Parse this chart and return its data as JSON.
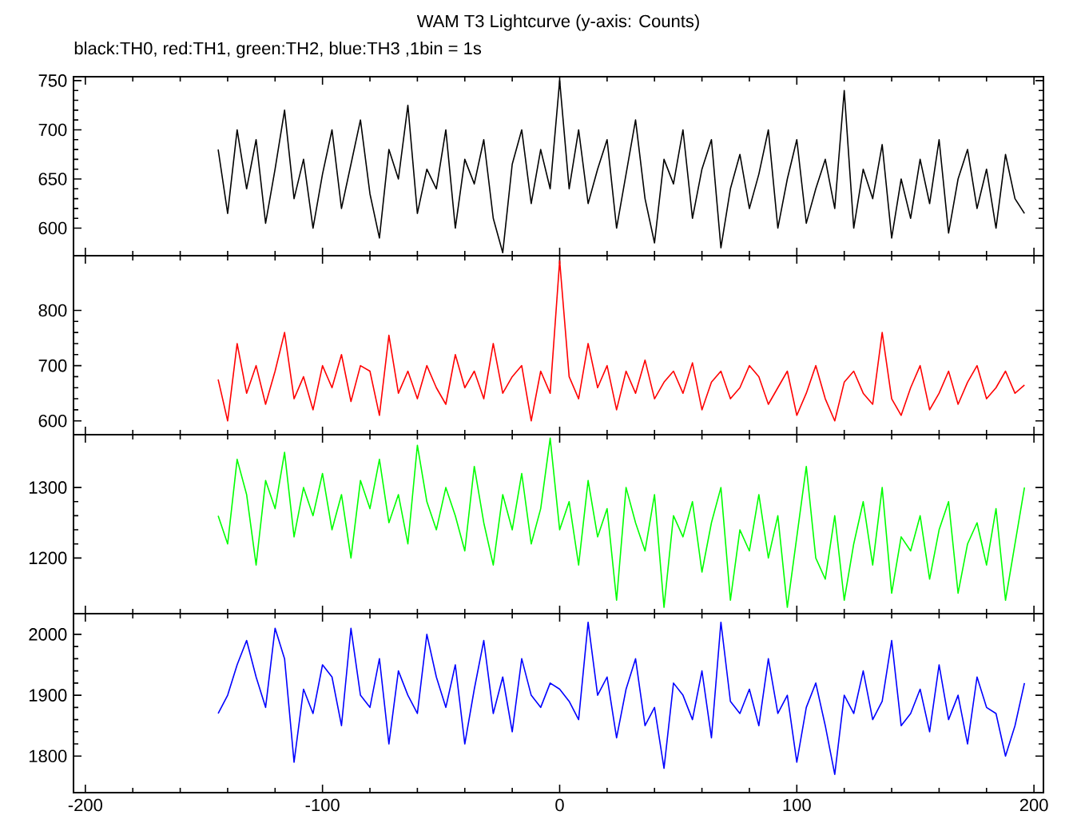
{
  "chart_data": [
    {
      "type": "line",
      "title": "WAM T3 Lightcurve (y-axis: Counts)",
      "subtitle": "black:TH0, red:TH1, green:TH2, blue:TH3 ,1bin = 1s",
      "tick_labels": "y",
      "xlim": [
        -205,
        204
      ],
      "xticks": [
        -200,
        -100,
        0,
        100,
        200
      ],
      "ylim": [
        572,
        754
      ],
      "yticks": [
        600,
        650,
        700,
        750
      ],
      "x": [
        -144,
        -140,
        -136,
        -132,
        -128,
        -124,
        -120,
        -116,
        -112,
        -108,
        -104,
        -100,
        -96,
        -92,
        -88,
        -84,
        -80,
        -76,
        -72,
        -68,
        -64,
        -60,
        -56,
        -52,
        -48,
        -44,
        -40,
        -36,
        -32,
        -28,
        -24,
        -20,
        -16,
        -12,
        -8,
        -4,
        0,
        4,
        8,
        12,
        16,
        20,
        24,
        28,
        32,
        36,
        40,
        44,
        48,
        52,
        56,
        60,
        64,
        68,
        72,
        76,
        80,
        84,
        88,
        92,
        96,
        100,
        104,
        108,
        112,
        116,
        120,
        124,
        128,
        132,
        136,
        140,
        144,
        148,
        152,
        156,
        160,
        164,
        168,
        172,
        176,
        180,
        184,
        188,
        192,
        196
      ],
      "series": [
        {
          "color": "#000000",
          "values": [
            680,
            615,
            700,
            640,
            690,
            605,
            660,
            720,
            630,
            670,
            600,
            655,
            700,
            620,
            665,
            710,
            635,
            590,
            680,
            650,
            725,
            615,
            660,
            640,
            700,
            600,
            670,
            645,
            690,
            610,
            575,
            665,
            700,
            625,
            680,
            640,
            750,
            640,
            700,
            625,
            660,
            690,
            600,
            655,
            710,
            630,
            585,
            670,
            645,
            700,
            610,
            660,
            690,
            580,
            640,
            675,
            620,
            655,
            700,
            600,
            650,
            690,
            605,
            640,
            670,
            620,
            740,
            600,
            660,
            630,
            685,
            590,
            650,
            610,
            670,
            625,
            690,
            595,
            650,
            680,
            620,
            660,
            600,
            675,
            630,
            615
          ]
        }
      ]
    },
    {
      "type": "line",
      "tick_labels": "y",
      "xlim": [
        -205,
        204
      ],
      "xticks": [
        -200,
        -100,
        0,
        100,
        200
      ],
      "ylim": [
        575,
        899
      ],
      "yticks": [
        600,
        700,
        800
      ],
      "x": [
        -144,
        -140,
        -136,
        -132,
        -128,
        -124,
        -120,
        -116,
        -112,
        -108,
        -104,
        -100,
        -96,
        -92,
        -88,
        -84,
        -80,
        -76,
        -72,
        -68,
        -64,
        -60,
        -56,
        -52,
        -48,
        -44,
        -40,
        -36,
        -32,
        -28,
        -24,
        -20,
        -16,
        -12,
        -8,
        -4,
        0,
        4,
        8,
        12,
        16,
        20,
        24,
        28,
        32,
        36,
        40,
        44,
        48,
        52,
        56,
        60,
        64,
        68,
        72,
        76,
        80,
        84,
        88,
        92,
        96,
        100,
        104,
        108,
        112,
        116,
        120,
        124,
        128,
        132,
        136,
        140,
        144,
        148,
        152,
        156,
        160,
        164,
        168,
        172,
        176,
        180,
        184,
        188,
        192,
        196
      ],
      "series": [
        {
          "color": "#ff0000",
          "values": [
            675,
            600,
            740,
            650,
            700,
            630,
            690,
            760,
            640,
            680,
            620,
            700,
            660,
            720,
            635,
            700,
            690,
            610,
            755,
            650,
            690,
            640,
            700,
            660,
            630,
            720,
            660,
            690,
            640,
            740,
            650,
            680,
            700,
            600,
            690,
            650,
            890,
            680,
            640,
            740,
            660,
            700,
            620,
            690,
            650,
            710,
            640,
            670,
            690,
            650,
            705,
            620,
            670,
            690,
            640,
            660,
            700,
            680,
            630,
            660,
            690,
            610,
            650,
            700,
            640,
            600,
            670,
            690,
            650,
            630,
            760,
            640,
            610,
            660,
            700,
            620,
            650,
            690,
            630,
            670,
            700,
            640,
            660,
            690,
            650,
            665
          ]
        }
      ]
    },
    {
      "type": "line",
      "tick_labels": "y",
      "xlim": [
        -205,
        204
      ],
      "xticks": [
        -200,
        -100,
        0,
        100,
        200
      ],
      "ylim": [
        1121,
        1375
      ],
      "yticks": [
        1200,
        1300
      ],
      "x": [
        -144,
        -140,
        -136,
        -132,
        -128,
        -124,
        -120,
        -116,
        -112,
        -108,
        -104,
        -100,
        -96,
        -92,
        -88,
        -84,
        -80,
        -76,
        -72,
        -68,
        -64,
        -60,
        -56,
        -52,
        -48,
        -44,
        -40,
        -36,
        -32,
        -28,
        -24,
        -20,
        -16,
        -12,
        -8,
        -4,
        0,
        4,
        8,
        12,
        16,
        20,
        24,
        28,
        32,
        36,
        40,
        44,
        48,
        52,
        56,
        60,
        64,
        68,
        72,
        76,
        80,
        84,
        88,
        92,
        96,
        100,
        104,
        108,
        112,
        116,
        120,
        124,
        128,
        132,
        136,
        140,
        144,
        148,
        152,
        156,
        160,
        164,
        168,
        172,
        176,
        180,
        184,
        188,
        192,
        196
      ],
      "series": [
        {
          "color": "#00ff00",
          "values": [
            1260,
            1220,
            1340,
            1290,
            1190,
            1310,
            1270,
            1350,
            1230,
            1300,
            1260,
            1320,
            1240,
            1290,
            1200,
            1310,
            1270,
            1340,
            1250,
            1290,
            1220,
            1360,
            1280,
            1240,
            1300,
            1260,
            1210,
            1330,
            1250,
            1190,
            1290,
            1240,
            1320,
            1220,
            1270,
            1370,
            1240,
            1280,
            1190,
            1310,
            1230,
            1270,
            1140,
            1300,
            1250,
            1210,
            1290,
            1130,
            1260,
            1230,
            1280,
            1180,
            1250,
            1300,
            1140,
            1240,
            1210,
            1290,
            1200,
            1260,
            1130,
            1230,
            1330,
            1200,
            1170,
            1260,
            1140,
            1220,
            1280,
            1190,
            1300,
            1150,
            1230,
            1210,
            1260,
            1170,
            1240,
            1280,
            1150,
            1220,
            1250,
            1190,
            1270,
            1140,
            1220,
            1300
          ]
        }
      ]
    },
    {
      "type": "line",
      "xlim": [
        -205,
        204
      ],
      "xticks": [
        -200,
        -100,
        0,
        100,
        200
      ],
      "ylim": [
        1740,
        2034
      ],
      "yticks": [
        1800,
        1900,
        2000
      ],
      "x": [
        -144,
        -140,
        -136,
        -132,
        -128,
        -124,
        -120,
        -116,
        -112,
        -108,
        -104,
        -100,
        -96,
        -92,
        -88,
        -84,
        -80,
        -76,
        -72,
        -68,
        -64,
        -60,
        -56,
        -52,
        -48,
        -44,
        -40,
        -36,
        -32,
        -28,
        -24,
        -20,
        -16,
        -12,
        -8,
        -4,
        0,
        4,
        8,
        12,
        16,
        20,
        24,
        28,
        32,
        36,
        40,
        44,
        48,
        52,
        56,
        60,
        64,
        68,
        72,
        76,
        80,
        84,
        88,
        92,
        96,
        100,
        104,
        108,
        112,
        116,
        120,
        124,
        128,
        132,
        136,
        140,
        144,
        148,
        152,
        156,
        160,
        164,
        168,
        172,
        176,
        180,
        184,
        188,
        192,
        196
      ],
      "series": [
        {
          "color": "#0000ff",
          "values": [
            1870,
            1900,
            1950,
            1990,
            1930,
            1880,
            2010,
            1960,
            1790,
            1910,
            1870,
            1950,
            1930,
            1850,
            2010,
            1900,
            1880,
            1960,
            1820,
            1940,
            1900,
            1870,
            2000,
            1930,
            1880,
            1950,
            1820,
            1910,
            1990,
            1870,
            1930,
            1840,
            1960,
            1900,
            1880,
            1920,
            1910,
            1890,
            1860,
            2020,
            1900,
            1930,
            1830,
            1910,
            1960,
            1850,
            1880,
            1780,
            1920,
            1900,
            1860,
            1940,
            1830,
            2020,
            1890,
            1870,
            1910,
            1850,
            1960,
            1870,
            1900,
            1790,
            1880,
            1920,
            1850,
            1770,
            1900,
            1870,
            1940,
            1860,
            1890,
            1990,
            1850,
            1870,
            1910,
            1840,
            1950,
            1860,
            1900,
            1820,
            1930,
            1880,
            1870,
            1800,
            1850,
            1920
          ]
        }
      ]
    }
  ]
}
